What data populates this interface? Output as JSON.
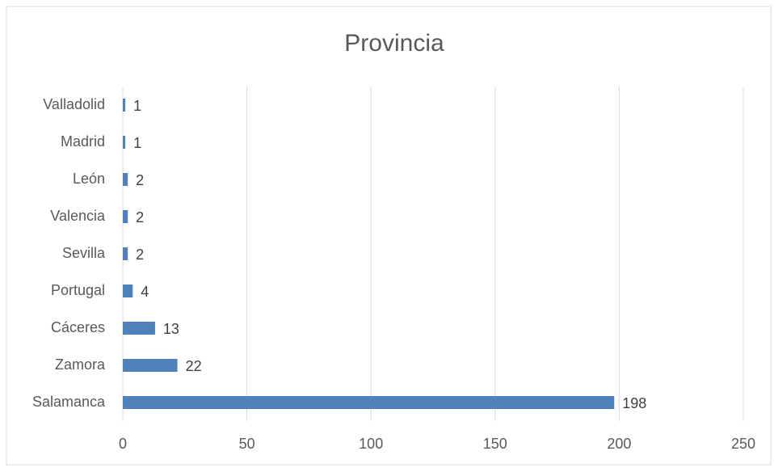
{
  "chart_data": {
    "type": "bar",
    "orientation": "horizontal",
    "title": "Provincia",
    "categories": [
      "Valladolid",
      "Madrid",
      "León",
      "Valencia",
      "Sevilla",
      "Portugal",
      "Cáceres",
      "Zamora",
      "Salamanca"
    ],
    "values": [
      1,
      1,
      2,
      2,
      2,
      4,
      13,
      22,
      198
    ],
    "color": "#4f81bd",
    "xlim": [
      0,
      250
    ],
    "xticks": [
      0,
      50,
      100,
      150,
      200,
      250
    ],
    "grid": true
  }
}
